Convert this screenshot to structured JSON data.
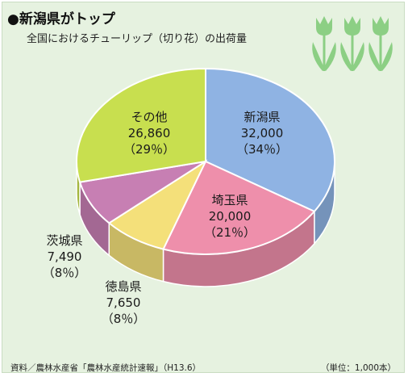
{
  "header": {
    "title": "●新潟県がトップ",
    "subtitle": "全国におけるチューリップ（切り花）の出荷量"
  },
  "footer": {
    "source": "資料／農林水産省「農林水産統計速報」（H13.6）",
    "unit": "（単位：1,000本）"
  },
  "colors": {
    "background": "#e6f2e0",
    "niigata": "#8fb3e3",
    "saitama": "#ee8fab",
    "tokushima": "#f4e07a",
    "ibaraki": "#c77fb3",
    "other": "#c8df4f",
    "tulip": "#8ccf84"
  },
  "icons": [
    "tulip-icon",
    "tulip-icon",
    "tulip-icon"
  ],
  "chart_data": {
    "type": "pie",
    "title": "全国におけるチューリップ（切り花）の出荷量",
    "unit": "1,000本",
    "slices": [
      {
        "name": "新潟県",
        "value": 32000,
        "value_label": "32,000",
        "percent_label": "（34％）"
      },
      {
        "name": "埼玉県",
        "value": 20000,
        "value_label": "20,000",
        "percent_label": "（21％）"
      },
      {
        "name": "徳島県",
        "value": 7650,
        "value_label": "7,650",
        "percent_label": "（8％）"
      },
      {
        "name": "茨城県",
        "value": 7490,
        "value_label": "7,490",
        "percent_label": "（8％）"
      },
      {
        "name": "その他",
        "value": 26860,
        "value_label": "26,860",
        "percent_label": "（29％）"
      }
    ]
  }
}
